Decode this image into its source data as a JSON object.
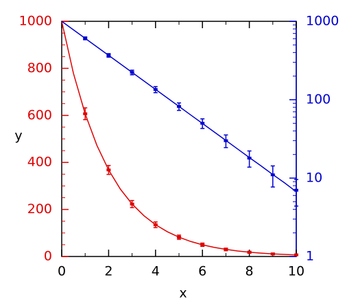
{
  "chart_data": {
    "type": "errorbar",
    "xlabel": "x",
    "ylabel": "y",
    "xlim": [
      0,
      10
    ],
    "xticks": [
      0,
      2,
      4,
      6,
      8,
      10
    ],
    "xminorticks": [
      1,
      3,
      5,
      7,
      9
    ],
    "ylim": [
      0,
      1000
    ],
    "yticks": [
      0,
      200,
      400,
      600,
      800,
      1000
    ],
    "yminorticks": [
      50,
      100,
      150,
      250,
      300,
      350,
      450,
      500,
      550,
      650,
      700,
      750,
      850,
      900,
      950
    ],
    "y2lim": [
      1,
      1000
    ],
    "y2log": true,
    "y2ticks": [
      1,
      10,
      100,
      1000
    ],
    "y2minorticks": [
      2,
      3,
      4,
      5,
      6,
      7,
      8,
      9,
      20,
      30,
      40,
      50,
      60,
      70,
      80,
      90,
      200,
      300,
      400,
      500,
      600,
      700,
      800,
      900
    ],
    "ycolor": "#e00000",
    "y2color": "#0000d0",
    "series": [
      {
        "color": "#e00000",
        "x": [
          1,
          2,
          3,
          4,
          5,
          6,
          7,
          8,
          9,
          10
        ],
        "values": [
          607,
          368,
          223,
          135,
          82,
          50,
          30,
          18,
          11,
          7
        ],
        "errors": [
          25,
          19,
          15,
          12,
          9,
          7,
          5.5,
          4.2,
          3.3,
          2.6
        ]
      },
      {
        "color": "#0000d0",
        "axis": "y2",
        "x": [
          1,
          2,
          3,
          4,
          5,
          6,
          7,
          8,
          9,
          10
        ],
        "values": [
          607,
          368,
          223,
          135,
          82,
          50,
          30,
          18,
          11,
          7
        ],
        "errors": [
          25,
          19,
          15,
          12,
          9,
          7,
          5.5,
          4.2,
          3.3,
          2.6
        ]
      }
    ],
    "lines": [
      {
        "color": "#e00000",
        "x": [
          0,
          0.5,
          1,
          1.5,
          2,
          2.5,
          3,
          3.5,
          4,
          4.5,
          5,
          5.5,
          6,
          6.5,
          7,
          7.5,
          8,
          8.5,
          9,
          9.5,
          10
        ],
        "values": [
          1000,
          778.8,
          606.5,
          472.4,
          367.9,
          286.5,
          223.1,
          173.8,
          135.3,
          105.4,
          82.1,
          63.9,
          49.8,
          38.8,
          30.2,
          23.5,
          18.3,
          14.3,
          11.1,
          8.7,
          6.7
        ]
      },
      {
        "color": "#0000d0",
        "axis": "y2",
        "x": [
          0,
          0.5,
          1,
          1.5,
          2,
          2.5,
          3,
          3.5,
          4,
          4.5,
          5,
          5.5,
          6,
          6.5,
          7,
          7.5,
          8,
          8.5,
          9,
          9.5,
          10
        ],
        "values": [
          1000,
          778.8,
          606.5,
          472.4,
          367.9,
          286.5,
          223.1,
          173.8,
          135.3,
          105.4,
          82.1,
          63.9,
          49.8,
          38.8,
          30.2,
          23.5,
          18.3,
          14.3,
          11.1,
          8.7,
          6.7
        ]
      }
    ]
  }
}
